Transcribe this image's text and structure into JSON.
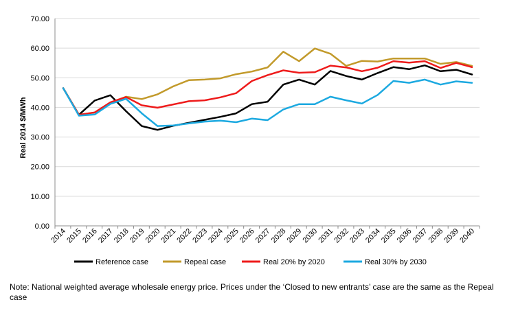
{
  "chart_data": {
    "type": "line",
    "ylabel": "Real 2014 $/MWh",
    "xlabel": "",
    "ylim": [
      0,
      70
    ],
    "y_ticks": [
      "0.00",
      "10.00",
      "20.00",
      "30.00",
      "40.00",
      "50.00",
      "60.00",
      "70.00"
    ],
    "x": [
      "2014",
      "2015",
      "2016",
      "2017",
      "2018",
      "2019",
      "2020",
      "2021",
      "2022",
      "2023",
      "2024",
      "2025",
      "2026",
      "2027",
      "2028",
      "2029",
      "2030",
      "2031",
      "2032",
      "2033",
      "2034",
      "2035",
      "2036",
      "2037",
      "2038",
      "2039",
      "2040"
    ],
    "grid": "horizontal",
    "legend_position": "bottom",
    "series": [
      {
        "name": "Reference case",
        "color": "#000000",
        "values": [
          46.5,
          37.5,
          42.3,
          44.1,
          38.7,
          33.7,
          32.4,
          33.8,
          34.8,
          35.8,
          36.8,
          38.0,
          41.1,
          41.9,
          47.7,
          49.4,
          47.7,
          52.3,
          50.6,
          49.4,
          51.6,
          53.6,
          52.9,
          54.2,
          52.2,
          52.7,
          51.1
        ]
      },
      {
        "name": "Repeal case",
        "color": "#C29A2B",
        "values": [
          46.5,
          37.5,
          38.3,
          41.6,
          43.6,
          42.8,
          44.4,
          47.1,
          49.2,
          49.4,
          49.8,
          51.2,
          52.1,
          53.5,
          58.8,
          55.6,
          59.9,
          58.1,
          54.0,
          55.7,
          55.5,
          56.5,
          56.5,
          56.5,
          54.7,
          55.3,
          54.0
        ]
      },
      {
        "name": "Real 20% by 2020",
        "color": "#EE1B1B",
        "values": [
          46.5,
          37.5,
          38.3,
          41.7,
          43.5,
          40.7,
          39.9,
          41.0,
          42.1,
          42.4,
          43.4,
          44.8,
          48.9,
          50.9,
          52.5,
          51.7,
          51.9,
          54.1,
          53.5,
          52.2,
          53.4,
          55.6,
          55.1,
          55.6,
          53.3,
          55.0,
          53.6
        ]
      },
      {
        "name": "Real 30% by 2030",
        "color": "#1CA9E0",
        "values": [
          46.5,
          37.2,
          37.6,
          41.2,
          42.9,
          38.0,
          33.7,
          33.9,
          34.6,
          35.2,
          35.5,
          35.0,
          36.2,
          35.7,
          39.3,
          41.1,
          41.1,
          43.6,
          42.4,
          41.3,
          44.2,
          48.9,
          48.3,
          49.4,
          47.7,
          48.8,
          48.3
        ]
      }
    ]
  },
  "note": "Note: National weighted average wholesale energy price. Prices under the ‘Closed to new entrants’ case are the same as the Repeal case"
}
